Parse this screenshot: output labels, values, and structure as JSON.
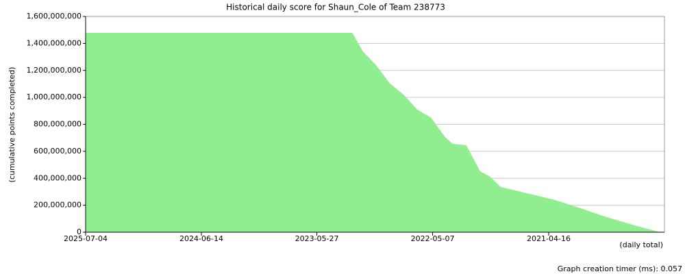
{
  "chart_data": {
    "type": "area",
    "title": "Historical daily score for Shaun_Cole of Team 238773",
    "y_label": "(cumulative points completed)",
    "x_label": "(daily total)",
    "footer": "Graph creation timer (ms): 0.057",
    "color": "#90ee90",
    "grid": true,
    "x": [
      "2025-07-04",
      "2023-01-29",
      "2022-12-25",
      "2022-11-11",
      "2022-09-26",
      "2022-08-12",
      "2022-06-27",
      "2022-05-12",
      "2022-03-27",
      "2022-03-01",
      "2022-01-15",
      "2021-11-30",
      "2021-10-27",
      "2021-09-23",
      "2021-07-18",
      "2021-05-11",
      "2021-03-27",
      "2020-12-25",
      "2020-10-19",
      "2020-07-20",
      "2020-04-19",
      "2020-03-27"
    ],
    "values": [
      1478000000,
      1478000000,
      1341000000,
      1239000000,
      1102000000,
      1021000000,
      909000000,
      848000000,
      706000000,
      655000000,
      645000000,
      452000000,
      411000000,
      335000000,
      300000000,
      264000000,
      239000000,
      173000000,
      122000000,
      61000000,
      5000000,
      0
    ],
    "xlim": [
      "2025-07-04",
      "2020-03-27"
    ],
    "xticks": [
      "2025-07-04",
      "2024-06-14",
      "2023-05-27",
      "2022-05-07",
      "2021-04-16"
    ],
    "ylim": [
      0,
      1600000000
    ],
    "yticks": [
      0,
      {
        "value": 200000000,
        "label": "200,000,000"
      },
      {
        "value": 400000000,
        "label": "400,000,000"
      },
      {
        "value": 600000000,
        "label": "600,000,000"
      },
      {
        "value": 800000000,
        "label": "800,000,000"
      },
      {
        "value": 1000000000,
        "label": "1,000,000,000"
      },
      {
        "value": 1200000000,
        "label": "1,200,000,000"
      },
      {
        "value": 1400000000,
        "label": "1,400,000,000"
      },
      {
        "value": 1600000000,
        "label": "1,600,000,000"
      }
    ]
  }
}
